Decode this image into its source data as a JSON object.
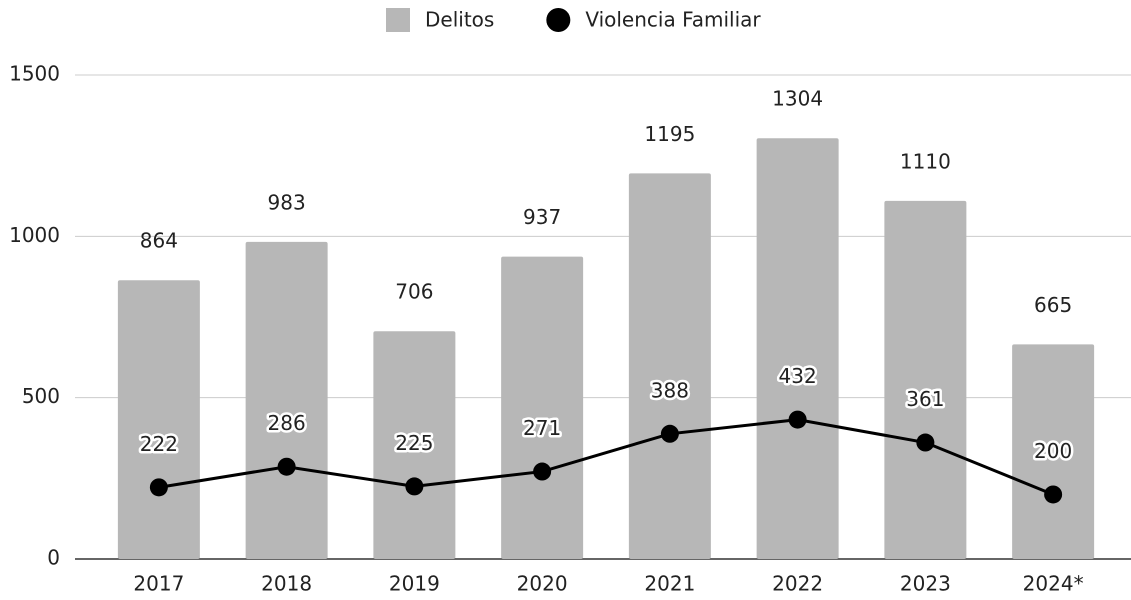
{
  "chart_data": {
    "type": "bar",
    "categories": [
      "2017",
      "2018",
      "2019",
      "2020",
      "2021",
      "2022",
      "2023",
      "2024*"
    ],
    "series": [
      {
        "name": "Delitos",
        "color": "#b7b7b7",
        "values": [
          864,
          983,
          706,
          937,
          1195,
          1304,
          1110,
          665
        ]
      },
      {
        "name": "Violencia Familiar",
        "color": "#000000",
        "type": "line",
        "values": [
          222,
          286,
          225,
          271,
          388,
          432,
          361,
          200
        ]
      }
    ],
    "ylim": [
      0,
      1500
    ],
    "yticks": [
      0,
      500,
      1000,
      1500
    ],
    "grid": true,
    "legend": "top"
  }
}
